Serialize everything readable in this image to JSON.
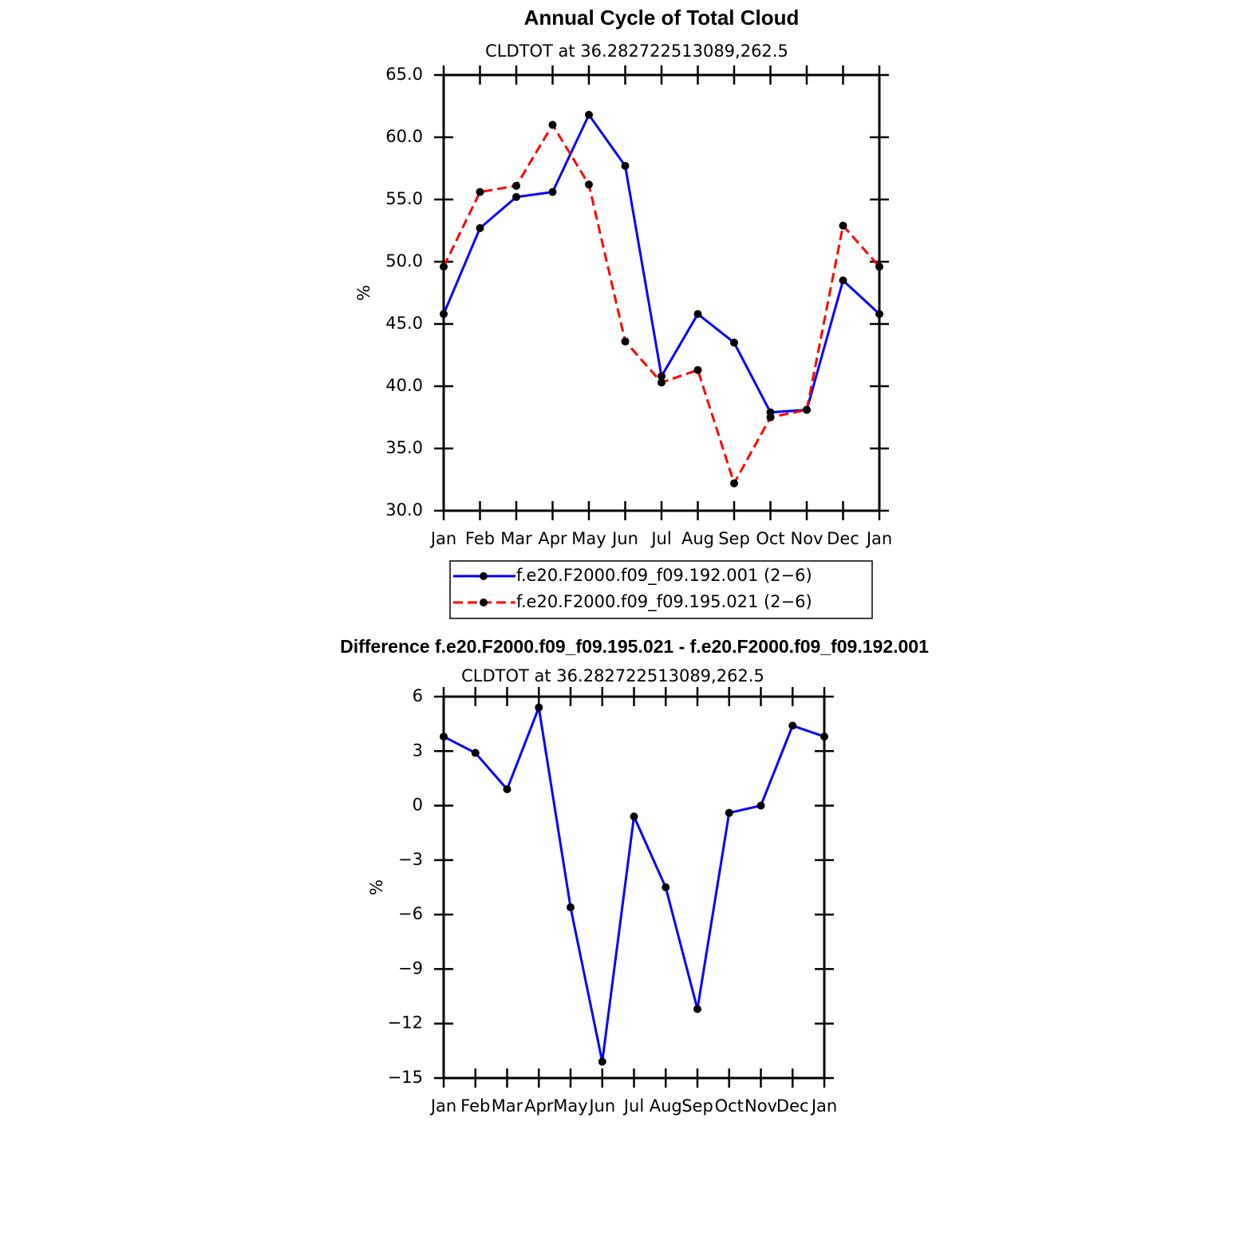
{
  "chart_data": [
    {
      "type": "line",
      "title": "Annual Cycle of Total Cloud",
      "subtitle": "CLDTOT at 36.282722513089,262.5",
      "ylabel": "%",
      "categories": [
        "Jan",
        "Feb",
        "Mar",
        "Apr",
        "May",
        "Jun",
        "Jul",
        "Aug",
        "Sep",
        "Oct",
        "Nov",
        "Dec",
        "Jan"
      ],
      "series": [
        {
          "name": "f.e20.F2000.f09_f09.192.001 (2−6)",
          "color": "#0000ff",
          "line_style": "solid",
          "values": [
            45.8,
            52.7,
            55.2,
            55.6,
            61.8,
            57.7,
            40.8,
            45.8,
            43.5,
            37.9,
            38.1,
            48.5,
            45.8
          ]
        },
        {
          "name": "f.e20.F2000.f09_f09.195.021 (2−6)",
          "color": "#ff0000",
          "line_style": "dashed",
          "values": [
            49.6,
            55.6,
            56.1,
            61.0,
            56.2,
            43.6,
            40.3,
            41.3,
            32.2,
            37.5,
            38.1,
            52.9,
            49.6
          ]
        }
      ],
      "ylim": [
        30,
        65
      ],
      "yticks": [
        {
          "value": 30,
          "label": "30.0"
        },
        {
          "value": 35,
          "label": "35.0"
        },
        {
          "value": 40,
          "label": "40.0"
        },
        {
          "value": 45,
          "label": "45.0"
        },
        {
          "value": 50,
          "label": "50.0"
        },
        {
          "value": 55,
          "label": "55.0"
        },
        {
          "value": 60,
          "label": "60.0"
        },
        {
          "value": 65,
          "label": "65.0"
        }
      ],
      "legend": "bottom"
    },
    {
      "type": "line",
      "title": "Difference f.e20.F2000.f09_f09.195.021 - f.e20.F2000.f09_f09.192.001",
      "subtitle": "CLDTOT at 36.282722513089,262.5",
      "ylabel": "%",
      "categories": [
        "Jan",
        "Feb",
        "Mar",
        "Apr",
        "May",
        "Jun",
        "Jul",
        "Aug",
        "Sep",
        "Oct",
        "Nov",
        "Dec",
        "Jan"
      ],
      "color": "#0000ff",
      "values": [
        3.8,
        2.9,
        0.9,
        5.4,
        -5.6,
        -14.1,
        -0.6,
        -4.5,
        -11.2,
        -0.4,
        0.0,
        4.4,
        3.8
      ],
      "ylim": [
        -15,
        6
      ],
      "yticks": [
        {
          "value": -15,
          "label": "−15"
        },
        {
          "value": -12,
          "label": "−12"
        },
        {
          "value": -9,
          "label": "−9"
        },
        {
          "value": -6,
          "label": "−6"
        },
        {
          "value": -3,
          "label": "−3"
        },
        0,
        3,
        6
      ]
    }
  ]
}
